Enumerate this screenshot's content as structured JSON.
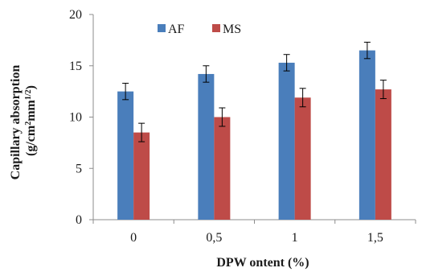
{
  "chart_data": {
    "type": "bar",
    "title": "",
    "xlabel": "DPW ontent (%)",
    "ylabel": "Capillary absorption",
    "ylabel_unit": {
      "prefix": "(g/cm",
      "sup1": "2",
      "middle": "mm",
      "sup2": "1/2",
      "suffix": ")"
    },
    "categories": [
      "0",
      "0,5",
      "1",
      "1,5"
    ],
    "series": [
      {
        "name": "AF",
        "color": "#4a7ebb",
        "values": [
          12.5,
          14.2,
          15.3,
          16.5
        ],
        "errors": [
          0.8,
          0.8,
          0.8,
          0.8
        ]
      },
      {
        "name": "MS",
        "color": "#be4b48",
        "values": [
          8.5,
          10.0,
          11.9,
          12.7
        ],
        "errors": [
          0.9,
          0.9,
          0.9,
          0.9
        ]
      }
    ],
    "ylim": [
      0,
      20
    ],
    "yticks": [
      "0",
      "5",
      "10",
      "15",
      "20"
    ],
    "grid": false,
    "legend_position": "top-center",
    "error_bars": true
  }
}
